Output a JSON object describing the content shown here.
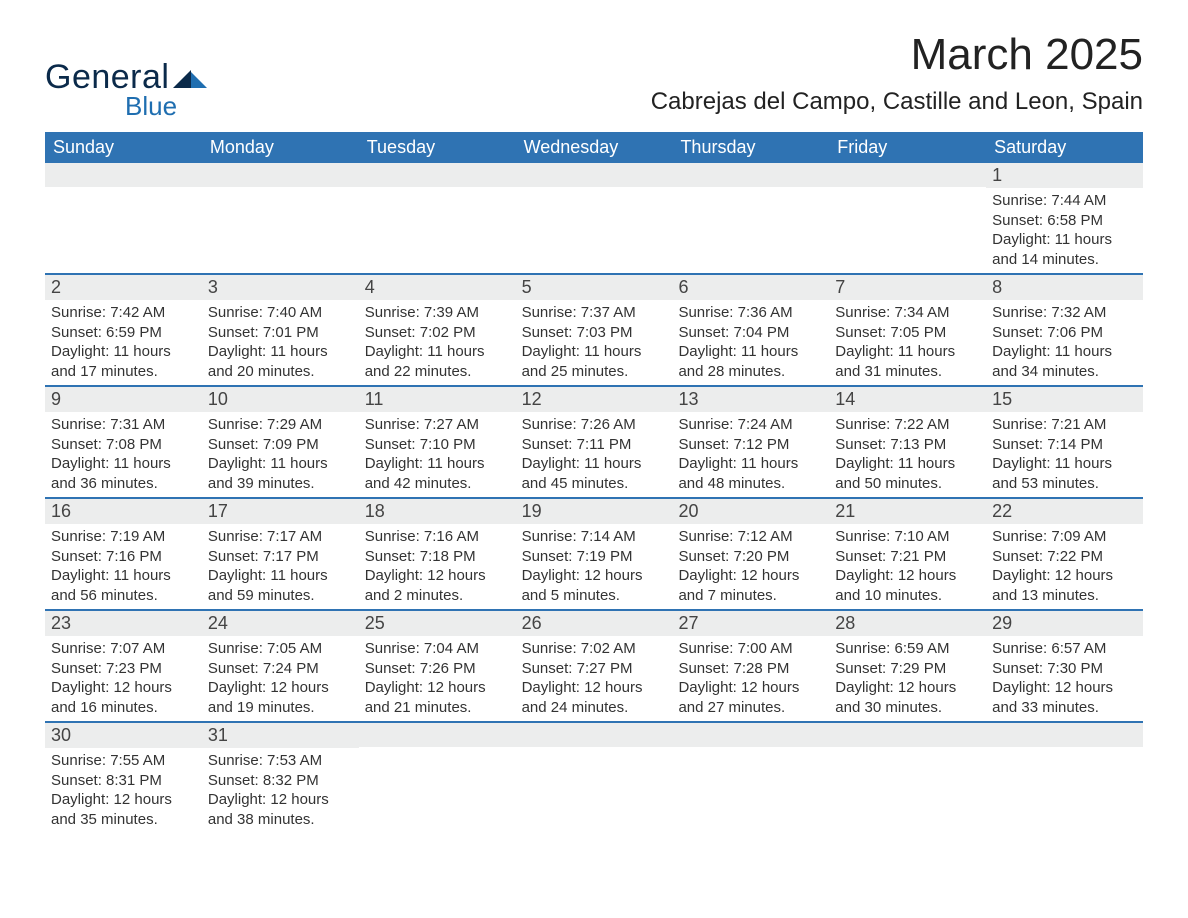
{
  "brand": {
    "general": "General",
    "blue": "Blue"
  },
  "title": "March 2025",
  "location": "Cabrejas del Campo, Castille and Leon, Spain",
  "colors": {
    "header_bg": "#2f73b3",
    "header_text": "#ffffff",
    "daynum_bg": "#eceded",
    "border": "#2f73b3",
    "text": "#333333",
    "logo_dark": "#0b2a4a",
    "logo_blue": "#1f6eb0"
  },
  "weekday_headers": [
    "Sunday",
    "Monday",
    "Tuesday",
    "Wednesday",
    "Thursday",
    "Friday",
    "Saturday"
  ],
  "weeks": [
    [
      {
        "n": "",
        "sunrise": "",
        "sunset": "",
        "daylight": ""
      },
      {
        "n": "",
        "sunrise": "",
        "sunset": "",
        "daylight": ""
      },
      {
        "n": "",
        "sunrise": "",
        "sunset": "",
        "daylight": ""
      },
      {
        "n": "",
        "sunrise": "",
        "sunset": "",
        "daylight": ""
      },
      {
        "n": "",
        "sunrise": "",
        "sunset": "",
        "daylight": ""
      },
      {
        "n": "",
        "sunrise": "",
        "sunset": "",
        "daylight": ""
      },
      {
        "n": "1",
        "sunrise": "Sunrise: 7:44 AM",
        "sunset": "Sunset: 6:58 PM",
        "daylight": "Daylight: 11 hours and 14 minutes."
      }
    ],
    [
      {
        "n": "2",
        "sunrise": "Sunrise: 7:42 AM",
        "sunset": "Sunset: 6:59 PM",
        "daylight": "Daylight: 11 hours and 17 minutes."
      },
      {
        "n": "3",
        "sunrise": "Sunrise: 7:40 AM",
        "sunset": "Sunset: 7:01 PM",
        "daylight": "Daylight: 11 hours and 20 minutes."
      },
      {
        "n": "4",
        "sunrise": "Sunrise: 7:39 AM",
        "sunset": "Sunset: 7:02 PM",
        "daylight": "Daylight: 11 hours and 22 minutes."
      },
      {
        "n": "5",
        "sunrise": "Sunrise: 7:37 AM",
        "sunset": "Sunset: 7:03 PM",
        "daylight": "Daylight: 11 hours and 25 minutes."
      },
      {
        "n": "6",
        "sunrise": "Sunrise: 7:36 AM",
        "sunset": "Sunset: 7:04 PM",
        "daylight": "Daylight: 11 hours and 28 minutes."
      },
      {
        "n": "7",
        "sunrise": "Sunrise: 7:34 AM",
        "sunset": "Sunset: 7:05 PM",
        "daylight": "Daylight: 11 hours and 31 minutes."
      },
      {
        "n": "8",
        "sunrise": "Sunrise: 7:32 AM",
        "sunset": "Sunset: 7:06 PM",
        "daylight": "Daylight: 11 hours and 34 minutes."
      }
    ],
    [
      {
        "n": "9",
        "sunrise": "Sunrise: 7:31 AM",
        "sunset": "Sunset: 7:08 PM",
        "daylight": "Daylight: 11 hours and 36 minutes."
      },
      {
        "n": "10",
        "sunrise": "Sunrise: 7:29 AM",
        "sunset": "Sunset: 7:09 PM",
        "daylight": "Daylight: 11 hours and 39 minutes."
      },
      {
        "n": "11",
        "sunrise": "Sunrise: 7:27 AM",
        "sunset": "Sunset: 7:10 PM",
        "daylight": "Daylight: 11 hours and 42 minutes."
      },
      {
        "n": "12",
        "sunrise": "Sunrise: 7:26 AM",
        "sunset": "Sunset: 7:11 PM",
        "daylight": "Daylight: 11 hours and 45 minutes."
      },
      {
        "n": "13",
        "sunrise": "Sunrise: 7:24 AM",
        "sunset": "Sunset: 7:12 PM",
        "daylight": "Daylight: 11 hours and 48 minutes."
      },
      {
        "n": "14",
        "sunrise": "Sunrise: 7:22 AM",
        "sunset": "Sunset: 7:13 PM",
        "daylight": "Daylight: 11 hours and 50 minutes."
      },
      {
        "n": "15",
        "sunrise": "Sunrise: 7:21 AM",
        "sunset": "Sunset: 7:14 PM",
        "daylight": "Daylight: 11 hours and 53 minutes."
      }
    ],
    [
      {
        "n": "16",
        "sunrise": "Sunrise: 7:19 AM",
        "sunset": "Sunset: 7:16 PM",
        "daylight": "Daylight: 11 hours and 56 minutes."
      },
      {
        "n": "17",
        "sunrise": "Sunrise: 7:17 AM",
        "sunset": "Sunset: 7:17 PM",
        "daylight": "Daylight: 11 hours and 59 minutes."
      },
      {
        "n": "18",
        "sunrise": "Sunrise: 7:16 AM",
        "sunset": "Sunset: 7:18 PM",
        "daylight": "Daylight: 12 hours and 2 minutes."
      },
      {
        "n": "19",
        "sunrise": "Sunrise: 7:14 AM",
        "sunset": "Sunset: 7:19 PM",
        "daylight": "Daylight: 12 hours and 5 minutes."
      },
      {
        "n": "20",
        "sunrise": "Sunrise: 7:12 AM",
        "sunset": "Sunset: 7:20 PM",
        "daylight": "Daylight: 12 hours and 7 minutes."
      },
      {
        "n": "21",
        "sunrise": "Sunrise: 7:10 AM",
        "sunset": "Sunset: 7:21 PM",
        "daylight": "Daylight: 12 hours and 10 minutes."
      },
      {
        "n": "22",
        "sunrise": "Sunrise: 7:09 AM",
        "sunset": "Sunset: 7:22 PM",
        "daylight": "Daylight: 12 hours and 13 minutes."
      }
    ],
    [
      {
        "n": "23",
        "sunrise": "Sunrise: 7:07 AM",
        "sunset": "Sunset: 7:23 PM",
        "daylight": "Daylight: 12 hours and 16 minutes."
      },
      {
        "n": "24",
        "sunrise": "Sunrise: 7:05 AM",
        "sunset": "Sunset: 7:24 PM",
        "daylight": "Daylight: 12 hours and 19 minutes."
      },
      {
        "n": "25",
        "sunrise": "Sunrise: 7:04 AM",
        "sunset": "Sunset: 7:26 PM",
        "daylight": "Daylight: 12 hours and 21 minutes."
      },
      {
        "n": "26",
        "sunrise": "Sunrise: 7:02 AM",
        "sunset": "Sunset: 7:27 PM",
        "daylight": "Daylight: 12 hours and 24 minutes."
      },
      {
        "n": "27",
        "sunrise": "Sunrise: 7:00 AM",
        "sunset": "Sunset: 7:28 PM",
        "daylight": "Daylight: 12 hours and 27 minutes."
      },
      {
        "n": "28",
        "sunrise": "Sunrise: 6:59 AM",
        "sunset": "Sunset: 7:29 PM",
        "daylight": "Daylight: 12 hours and 30 minutes."
      },
      {
        "n": "29",
        "sunrise": "Sunrise: 6:57 AM",
        "sunset": "Sunset: 7:30 PM",
        "daylight": "Daylight: 12 hours and 33 minutes."
      }
    ],
    [
      {
        "n": "30",
        "sunrise": "Sunrise: 7:55 AM",
        "sunset": "Sunset: 8:31 PM",
        "daylight": "Daylight: 12 hours and 35 minutes."
      },
      {
        "n": "31",
        "sunrise": "Sunrise: 7:53 AM",
        "sunset": "Sunset: 8:32 PM",
        "daylight": "Daylight: 12 hours and 38 minutes."
      },
      {
        "n": "",
        "sunrise": "",
        "sunset": "",
        "daylight": ""
      },
      {
        "n": "",
        "sunrise": "",
        "sunset": "",
        "daylight": ""
      },
      {
        "n": "",
        "sunrise": "",
        "sunset": "",
        "daylight": ""
      },
      {
        "n": "",
        "sunrise": "",
        "sunset": "",
        "daylight": ""
      },
      {
        "n": "",
        "sunrise": "",
        "sunset": "",
        "daylight": ""
      }
    ]
  ]
}
